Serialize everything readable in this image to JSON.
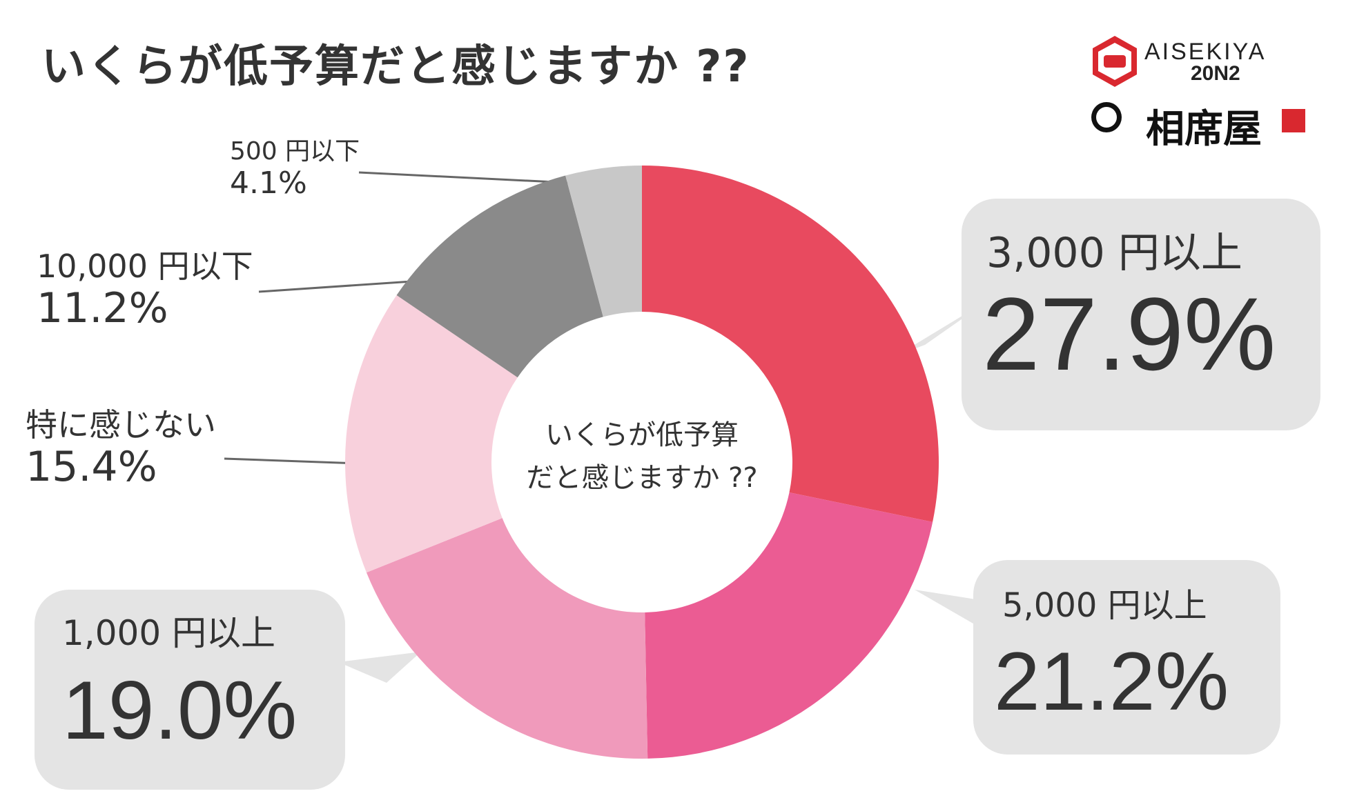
{
  "title": "いくらが低予算だと感じますか ??",
  "center_label_line1": "いくらが低予算",
  "center_label_line2": "だと感じますか ??",
  "logo": {
    "brand": "AISEKIYA",
    "version": "20N2",
    "name_jp": "相席屋"
  },
  "colors": {
    "3000_above": "#e84a5f",
    "5000_above": "#eb5c93",
    "1000_above": "#f09abb",
    "no_feeling": "#f8d0dc",
    "10000_below": "#8a8a8a",
    "500_below": "#c8c8c8",
    "bubble_bg": "#e4e4e4"
  },
  "chart_data": {
    "type": "pie",
    "donut": true,
    "title": "いくらが低予算だと感じますか ??",
    "slices": [
      {
        "label": "3,000 円以上",
        "value": 27.9,
        "display": "27.9%"
      },
      {
        "label": "5,000 円以上",
        "value": 21.2,
        "display": "21.2%"
      },
      {
        "label": "1,000 円以上",
        "value": 19.0,
        "display": "19.0%"
      },
      {
        "label": "特に感じない",
        "value": 15.4,
        "display": "15.4%"
      },
      {
        "label": "10,000 円以下",
        "value": 11.2,
        "display": "11.2%"
      },
      {
        "label": "500 円以下",
        "value": 4.1,
        "display": "4.1%"
      }
    ]
  }
}
